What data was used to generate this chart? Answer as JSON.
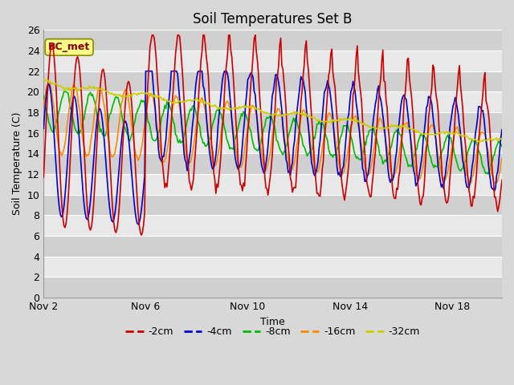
{
  "title": "Soil Temperatures Set B",
  "xlabel": "Time",
  "ylabel": "Soil Temperature (C)",
  "ylim": [
    0,
    26
  ],
  "yticks": [
    0,
    2,
    4,
    6,
    8,
    10,
    12,
    14,
    16,
    18,
    20,
    22,
    24,
    26
  ],
  "x_tick_labels": [
    "Nov 2",
    "Nov 6",
    "Nov 10",
    "Nov 14",
    "Nov 18"
  ],
  "x_tick_positions": [
    0,
    96,
    192,
    288,
    384
  ],
  "total_points": 432,
  "legend_labels": [
    "-2cm",
    "-4cm",
    "-8cm",
    "-16cm",
    "-32cm"
  ],
  "legend_colors": [
    "#cc0000",
    "#0000cc",
    "#00bb00",
    "#ff8800",
    "#cccc00"
  ],
  "line_width": 1.2,
  "bg_color": "#d8d8d8",
  "plot_bg_color": "#d8d8d8",
  "band_light": "#e8e8e8",
  "band_dark": "#d0d0d0",
  "annotation_text": "BC_met",
  "annotation_bg": "#ffff88",
  "annotation_border": "#888800",
  "annotation_text_color": "#880000",
  "grid_color": "#ffffff",
  "title_fontsize": 12,
  "axis_label_fontsize": 9,
  "tick_fontsize": 9
}
